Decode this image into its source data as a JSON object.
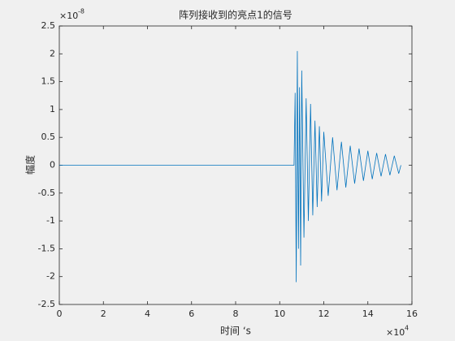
{
  "chart_data": {
    "type": "line",
    "title": "阵列接收到的亮点1的信号",
    "x_label": "时间 ‘s",
    "y_label": "幅度",
    "x_multiplier": {
      "base": "×10",
      "exponent": "4"
    },
    "y_multiplier": {
      "base": "×10",
      "exponent": "-8"
    },
    "x": [
      0,
      10.65,
      10.7,
      10.75,
      10.8,
      10.85,
      10.9,
      10.95,
      11.0,
      11.1,
      11.2,
      11.3,
      11.4,
      11.5,
      11.6,
      11.7,
      11.8,
      11.9,
      12.0,
      12.2,
      12.4,
      12.6,
      12.8,
      13.0,
      13.2,
      13.4,
      13.6,
      13.8,
      14.0,
      14.2,
      14.4,
      14.6,
      14.8,
      15.0,
      15.2,
      15.4,
      15.5
    ],
    "series": [
      {
        "color": "#0072bd",
        "values": [
          0,
          0,
          1.3,
          -2.1,
          2.05,
          -1.5,
          1.4,
          -1.8,
          1.7,
          -1.3,
          1.2,
          -1.0,
          1.1,
          -0.9,
          0.8,
          -0.75,
          0.7,
          -0.65,
          0.6,
          -0.55,
          0.5,
          -0.45,
          0.42,
          -0.4,
          0.35,
          -0.33,
          0.3,
          -0.28,
          0.26,
          -0.25,
          0.22,
          -0.2,
          0.2,
          -0.18,
          0.17,
          -0.15,
          0
        ]
      }
    ],
    "xlim": [
      0,
      16
    ],
    "xticks": [
      0,
      2,
      4,
      6,
      8,
      10,
      12,
      14,
      16
    ],
    "ylim": [
      -2.5,
      2.5
    ],
    "yticks": [
      -2.5,
      -2,
      -1.5,
      -1,
      -0.5,
      0,
      0.5,
      1,
      1.5,
      2,
      2.5
    ],
    "grid": false
  }
}
